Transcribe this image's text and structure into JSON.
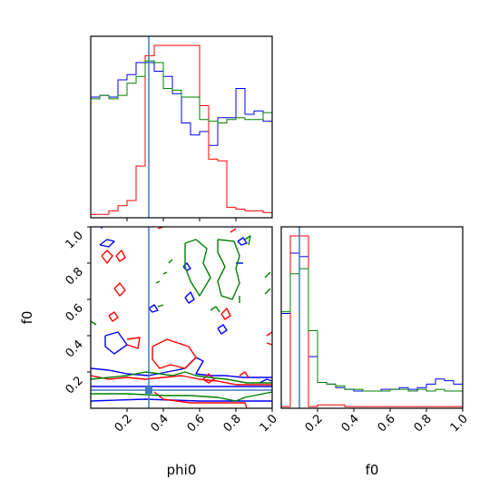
{
  "chart_data": {
    "type": "corner",
    "parameters": [
      "phi0",
      "f0"
    ],
    "truth": {
      "phi0": 0.32,
      "f0": 0.1
    },
    "colors": {
      "series_a": "#0000ff",
      "series_b": "#ff0000",
      "series_c": "#008000",
      "truth": "#3b7dbf"
    },
    "xlabel_phi0": "phi0",
    "xlabel_f0": "f0",
    "ylabel_f0": "f0",
    "ticks": {
      "phi0": [
        "0.2",
        "0.4",
        "0.6",
        "0.8",
        "1.0"
      ],
      "f0": [
        "0.2",
        "0.4",
        "0.6",
        "0.8",
        "1.0"
      ]
    },
    "hist_phi0": {
      "range": [
        0.0,
        1.0
      ],
      "ymax": 1.0,
      "series": [
        {
          "color": "#0000ff",
          "values": [
            0.7,
            0.71,
            0.7,
            0.8,
            0.83,
            0.9,
            0.9,
            0.85,
            0.82,
            0.72,
            0.55,
            0.48,
            0.5,
            0.42,
            0.58,
            0.58,
            0.75,
            0.6,
            0.62,
            0.56
          ]
        },
        {
          "color": "#ff0000",
          "values": [
            0.02,
            0.02,
            0.04,
            0.07,
            0.1,
            0.3,
            0.94,
            1.0,
            1.0,
            1.0,
            1.0,
            1.0,
            0.65,
            0.34,
            0.33,
            0.06,
            0.05,
            0.04,
            0.04,
            0.03
          ]
        },
        {
          "color": "#008000",
          "values": [
            0.69,
            0.71,
            0.69,
            0.71,
            0.78,
            0.82,
            0.91,
            0.9,
            0.75,
            0.74,
            0.7,
            0.7,
            0.57,
            0.56,
            0.55,
            0.57,
            0.58,
            0.57,
            0.57,
            0.61
          ]
        }
      ]
    },
    "hist_f0": {
      "range": [
        0.0,
        1.0
      ],
      "ymax": 1.0,
      "series": [
        {
          "color": "#0000ff",
          "values": [
            0.55,
            0.9,
            0.88,
            0.3,
            0.15,
            0.14,
            0.12,
            0.11,
            0.1,
            0.1,
            0.1,
            0.11,
            0.11,
            0.12,
            0.11,
            0.12,
            0.14,
            0.17,
            0.16,
            0.14
          ]
        },
        {
          "color": "#ff0000",
          "values": [
            0.01,
            1.0,
            1.0,
            0.01,
            0.02,
            0.02,
            0.02,
            0.01,
            0.01,
            0.01,
            0.01,
            0.01,
            0.01,
            0.01,
            0.01,
            0.01,
            0.01,
            0.01,
            0.01,
            0.01
          ]
        },
        {
          "color": "#008000",
          "values": [
            0.56,
            0.78,
            0.81,
            0.45,
            0.15,
            0.14,
            0.13,
            0.11,
            0.11,
            0.1,
            0.1,
            0.1,
            0.11,
            0.11,
            0.1,
            0.11,
            0.1,
            0.11,
            0.1,
            0.1
          ]
        }
      ]
    },
    "contours": [
      {
        "color": "#0000ff",
        "points": [
          [
            0.05,
            0.9
          ],
          [
            0.09,
            0.93
          ],
          [
            0.13,
            0.92
          ],
          [
            0.1,
            0.89
          ],
          [
            0.05,
            0.9
          ]
        ]
      },
      {
        "color": "#0000ff",
        "points": [
          [
            0.08,
            0.4
          ],
          [
            0.15,
            0.42
          ],
          [
            0.2,
            0.35
          ],
          [
            0.13,
            0.3
          ],
          [
            0.08,
            0.34
          ],
          [
            0.08,
            0.4
          ]
        ]
      },
      {
        "color": "#0000ff",
        "points": [
          [
            0.0,
            0.22
          ],
          [
            0.1,
            0.21
          ],
          [
            0.2,
            0.19
          ],
          [
            0.32,
            0.18
          ],
          [
            0.42,
            0.2
          ],
          [
            0.52,
            0.22
          ],
          [
            0.58,
            0.28
          ],
          [
            0.62,
            0.26
          ],
          [
            0.58,
            0.19
          ],
          [
            0.66,
            0.18
          ],
          [
            0.74,
            0.18
          ],
          [
            0.84,
            0.17
          ],
          [
            1.0,
            0.17
          ]
        ]
      },
      {
        "color": "#0000ff",
        "points": [
          [
            0.0,
            0.12
          ],
          [
            0.4,
            0.12
          ],
          [
            0.7,
            0.12
          ],
          [
            1.0,
            0.12
          ]
        ]
      },
      {
        "color": "#0000ff",
        "points": [
          [
            0.0,
            0.04
          ],
          [
            0.3,
            0.05
          ],
          [
            0.6,
            0.04
          ],
          [
            1.0,
            0.04
          ]
        ]
      },
      {
        "color": "#0000ff",
        "points": [
          [
            0.52,
            0.61
          ],
          [
            0.55,
            0.64
          ],
          [
            0.57,
            0.6
          ],
          [
            0.54,
            0.58
          ],
          [
            0.52,
            0.61
          ]
        ]
      },
      {
        "color": "#0000ff",
        "points": [
          [
            0.51,
            0.78
          ],
          [
            0.53,
            0.8
          ],
          [
            0.55,
            0.77
          ],
          [
            0.53,
            0.76
          ],
          [
            0.51,
            0.78
          ]
        ]
      },
      {
        "color": "#0000ff",
        "points": [
          [
            0.7,
            0.44
          ],
          [
            0.73,
            0.46
          ],
          [
            0.75,
            0.43
          ],
          [
            0.72,
            0.41
          ],
          [
            0.7,
            0.44
          ]
        ]
      },
      {
        "color": "#0000ff",
        "points": [
          [
            0.81,
            0.92
          ],
          [
            0.84,
            0.94
          ],
          [
            0.86,
            0.91
          ],
          [
            0.83,
            0.9
          ],
          [
            0.81,
            0.92
          ]
        ]
      },
      {
        "color": "#0000ff",
        "points": [
          [
            0.8,
            0.8
          ],
          [
            0.84,
            0.8
          ]
        ]
      },
      {
        "color": "#0000ff",
        "points": [
          [
            0.32,
            0.55
          ],
          [
            0.35,
            0.57
          ],
          [
            0.37,
            0.54
          ],
          [
            0.34,
            0.53
          ],
          [
            0.32,
            0.55
          ]
        ]
      },
      {
        "color": "#0000ff",
        "points": [
          [
            0.06,
            0.99
          ],
          [
            0.06,
            1.0
          ]
        ]
      },
      {
        "color": "#0000ff",
        "points": [
          [
            0.93,
            0.14
          ],
          [
            0.97,
            0.16
          ],
          [
            1.0,
            0.15
          ]
        ]
      },
      {
        "color": "#ff0000",
        "points": [
          [
            0.06,
            0.84
          ],
          [
            0.09,
            0.87
          ],
          [
            0.12,
            0.84
          ],
          [
            0.09,
            0.8
          ],
          [
            0.06,
            0.84
          ]
        ]
      },
      {
        "color": "#ff0000",
        "points": [
          [
            0.14,
            0.84
          ],
          [
            0.17,
            0.87
          ],
          [
            0.19,
            0.83
          ],
          [
            0.16,
            0.81
          ],
          [
            0.14,
            0.84
          ]
        ]
      },
      {
        "color": "#ff0000",
        "points": [
          [
            0.13,
            0.66
          ],
          [
            0.16,
            0.69
          ],
          [
            0.19,
            0.65
          ],
          [
            0.16,
            0.62
          ],
          [
            0.13,
            0.66
          ]
        ]
      },
      {
        "color": "#ff0000",
        "points": [
          [
            0.1,
            0.51
          ],
          [
            0.13,
            0.53
          ],
          [
            0.15,
            0.5
          ],
          [
            0.12,
            0.48
          ],
          [
            0.1,
            0.51
          ]
        ]
      },
      {
        "color": "#ff0000",
        "points": [
          [
            0.2,
            0.38
          ],
          [
            0.27,
            0.39
          ],
          [
            0.26,
            0.33
          ],
          [
            0.2,
            0.35
          ]
        ]
      },
      {
        "color": "#ff0000",
        "points": [
          [
            0.34,
            0.34
          ],
          [
            0.42,
            0.38
          ],
          [
            0.54,
            0.34
          ],
          [
            0.58,
            0.28
          ],
          [
            0.52,
            0.22
          ],
          [
            0.44,
            0.24
          ],
          [
            0.38,
            0.22
          ],
          [
            0.34,
            0.27
          ],
          [
            0.34,
            0.34
          ]
        ]
      },
      {
        "color": "#ff0000",
        "points": [
          [
            0.0,
            0.18
          ],
          [
            0.1,
            0.16
          ],
          [
            0.2,
            0.17
          ],
          [
            0.3,
            0.16
          ],
          [
            0.4,
            0.17
          ],
          [
            0.5,
            0.18
          ],
          [
            0.6,
            0.16
          ],
          [
            0.7,
            0.15
          ],
          [
            0.8,
            0.13
          ],
          [
            1.0,
            0.13
          ]
        ]
      },
      {
        "color": "#ff0000",
        "points": [
          [
            0.35,
            0.09
          ],
          [
            0.4,
            0.05
          ],
          [
            0.55,
            0.03
          ],
          [
            0.75,
            0.03
          ],
          [
            0.85,
            0.03
          ],
          [
            0.86,
            0.0
          ]
        ]
      },
      {
        "color": "#ff0000",
        "points": [
          [
            0.62,
            0.16
          ],
          [
            0.65,
            0.19
          ],
          [
            0.68,
            0.16
          ],
          [
            0.65,
            0.14
          ],
          [
            0.62,
            0.16
          ]
        ]
      },
      {
        "color": "#ff0000",
        "points": [
          [
            0.72,
            0.52
          ],
          [
            0.75,
            0.55
          ],
          [
            0.77,
            0.51
          ],
          [
            0.74,
            0.49
          ],
          [
            0.72,
            0.52
          ]
        ]
      },
      {
        "color": "#ff0000",
        "points": [
          [
            0.97,
            0.4
          ],
          [
            1.0,
            0.42
          ]
        ]
      },
      {
        "color": "#ff0000",
        "points": [
          [
            0.97,
            0.36
          ],
          [
            1.0,
            0.35
          ]
        ]
      },
      {
        "color": "#ff0000",
        "points": [
          [
            0.82,
            0.18
          ],
          [
            0.85,
            0.2
          ],
          [
            0.87,
            0.17
          ]
        ]
      },
      {
        "color": "#ff0000",
        "points": [
          [
            0.37,
            0.99
          ],
          [
            0.4,
            1.0
          ]
        ]
      },
      {
        "color": "#ff0000",
        "points": [
          [
            0.77,
            0.97
          ],
          [
            0.8,
            0.99
          ]
        ]
      },
      {
        "color": "#008000",
        "points": [
          [
            0.52,
            0.91
          ],
          [
            0.58,
            0.93
          ],
          [
            0.64,
            0.88
          ],
          [
            0.62,
            0.8
          ],
          [
            0.66,
            0.72
          ],
          [
            0.6,
            0.62
          ],
          [
            0.55,
            0.7
          ],
          [
            0.52,
            0.78
          ],
          [
            0.52,
            0.91
          ]
        ]
      },
      {
        "color": "#008000",
        "points": [
          [
            0.7,
            0.93
          ],
          [
            0.79,
            0.92
          ],
          [
            0.82,
            0.84
          ],
          [
            0.8,
            0.77
          ],
          [
            0.82,
            0.69
          ],
          [
            0.78,
            0.6
          ],
          [
            0.72,
            0.62
          ],
          [
            0.7,
            0.7
          ],
          [
            0.74,
            0.78
          ],
          [
            0.7,
            0.86
          ],
          [
            0.7,
            0.93
          ]
        ]
      },
      {
        "color": "#008000",
        "points": [
          [
            0.85,
            0.93
          ],
          [
            0.88,
            0.95
          ],
          [
            0.87,
            0.9
          ]
        ]
      },
      {
        "color": "#008000",
        "points": [
          [
            0.0,
            0.48
          ],
          [
            0.03,
            0.46
          ]
        ]
      },
      {
        "color": "#008000",
        "points": [
          [
            0.0,
            0.16
          ],
          [
            0.1,
            0.17
          ],
          [
            0.2,
            0.18
          ],
          [
            0.3,
            0.2
          ],
          [
            0.38,
            0.19
          ],
          [
            0.45,
            0.18
          ],
          [
            0.52,
            0.2
          ],
          [
            0.58,
            0.18
          ],
          [
            0.65,
            0.17
          ],
          [
            0.75,
            0.16
          ],
          [
            0.86,
            0.14
          ],
          [
            1.0,
            0.14
          ]
        ]
      },
      {
        "color": "#008000",
        "points": [
          [
            0.0,
            0.08
          ],
          [
            0.2,
            0.08
          ],
          [
            0.4,
            0.07
          ],
          [
            0.55,
            0.07
          ],
          [
            0.7,
            0.06
          ],
          [
            0.8,
            0.04
          ],
          [
            0.85,
            0.06
          ],
          [
            1.0,
            0.09
          ]
        ]
      },
      {
        "color": "#008000",
        "points": [
          [
            0.36,
            0.69
          ],
          [
            0.38,
            0.7
          ]
        ]
      },
      {
        "color": "#008000",
        "points": [
          [
            0.4,
            0.74
          ],
          [
            0.42,
            0.75
          ]
        ]
      },
      {
        "color": "#008000",
        "points": [
          [
            0.37,
            0.56
          ],
          [
            0.4,
            0.57
          ]
        ]
      },
      {
        "color": "#008000",
        "points": [
          [
            0.66,
            0.54
          ],
          [
            0.69,
            0.56
          ],
          [
            0.71,
            0.53
          ]
        ]
      },
      {
        "color": "#008000",
        "points": [
          [
            0.82,
            0.62
          ],
          [
            0.82,
            0.58
          ]
        ]
      },
      {
        "color": "#008000",
        "points": [
          [
            0.96,
            0.72
          ],
          [
            0.99,
            0.75
          ]
        ]
      },
      {
        "color": "#008000",
        "points": [
          [
            0.96,
            0.63
          ],
          [
            0.99,
            0.66
          ]
        ]
      },
      {
        "color": "#008000",
        "points": [
          [
            0.43,
            0.8
          ],
          [
            0.45,
            0.82
          ]
        ]
      }
    ]
  }
}
